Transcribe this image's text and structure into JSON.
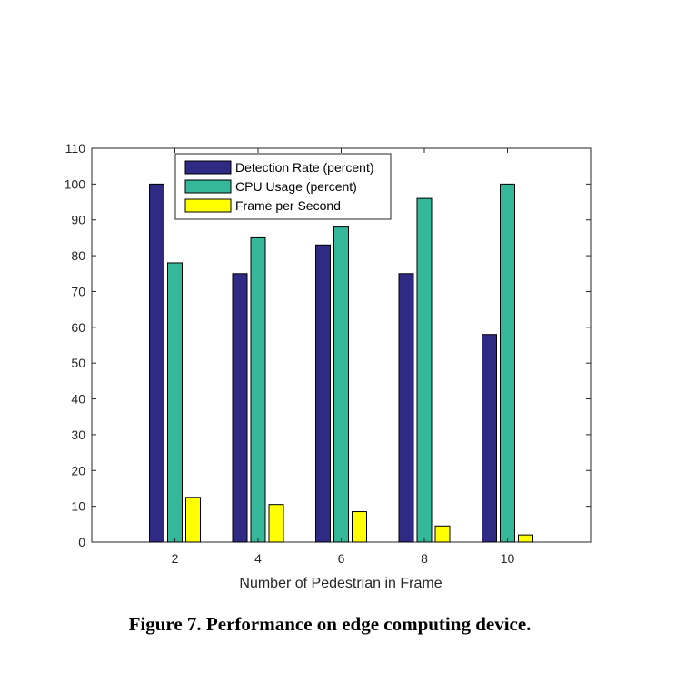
{
  "chart_data": {
    "type": "bar",
    "xlabel": "Number of Pedestrian in Frame",
    "ylabel": "",
    "categories": [
      "2",
      "4",
      "6",
      "8",
      "10"
    ],
    "ylim": [
      0,
      110
    ],
    "yticks": [
      0,
      10,
      20,
      30,
      40,
      50,
      60,
      70,
      80,
      90,
      100,
      110
    ],
    "grid": false,
    "legend_position": "top-left",
    "series": [
      {
        "name": "Detection Rate (percent)",
        "color": "#2f2a84",
        "values": [
          100,
          75,
          83,
          75,
          58
        ]
      },
      {
        "name": "CPU Usage (percent)",
        "color": "#35b799",
        "values": [
          78,
          85,
          88,
          96,
          100
        ]
      },
      {
        "name": "Frame per Second",
        "color": "#ffff00",
        "values": [
          12.5,
          10.5,
          8.5,
          4.5,
          2
        ]
      }
    ]
  },
  "caption": "Figure 7. Performance on edge computing device."
}
